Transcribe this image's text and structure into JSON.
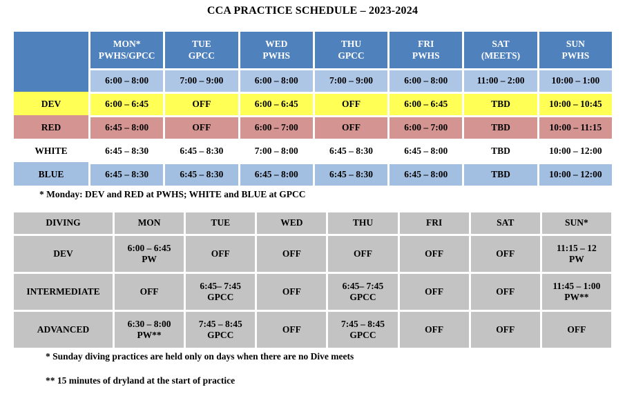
{
  "title": "CCA PRACTICE SCHEDULE – 2023-2024",
  "colors": {
    "header_blue": "#4F81BD",
    "time_row_blue": "#AEC6E6",
    "blue_row": "#A2BFE1",
    "dev_yellow": "#FFFF55",
    "red_row": "#D49492",
    "white_row": "#FFFFFF",
    "diving_gray": "#C3C3C3"
  },
  "swim_table": {
    "headers": [
      "",
      "MON*\nPWHS/GPCC",
      "TUE\nGPCC",
      "WED\nPWHS",
      "THU\nGPCC",
      "FRI\nPWHS",
      "SAT\n(MEETS)",
      "SUN\nPWHS"
    ],
    "rows": [
      {
        "label": "",
        "cells": [
          "6:00 – 8:00",
          "7:00 – 9:00",
          "6:00 – 8:00",
          "7:00 – 9:00",
          "6:00 – 8:00",
          "11:00 – 2:00",
          "10:00 – 1:00"
        ]
      },
      {
        "label": "DEV",
        "cells": [
          "6:00 – 6:45",
          "OFF",
          "6:00 – 6:45",
          "OFF",
          "6:00 – 6:45",
          "TBD",
          "10:00 – 10:45"
        ]
      },
      {
        "label": "RED",
        "cells": [
          "6:45 – 8:00",
          "OFF",
          "6:00 – 7:00",
          "OFF",
          "6:00 – 7:00",
          "TBD",
          "10:00 – 11:15"
        ]
      },
      {
        "label": "WHITE",
        "cells": [
          "6:45 – 8:30",
          "6:45 – 8:30",
          "7:00 – 8:00",
          "6:45 – 8:30",
          "6:45 – 8:00",
          "TBD",
          "10:00 – 12:00"
        ]
      },
      {
        "label": "BLUE",
        "cells": [
          "6:45 – 8:30",
          "6:45 – 8:30",
          "6:45 – 8:00",
          "6:45 – 8:30",
          "6:45 – 8:00",
          "TBD",
          "10:00 – 12:00"
        ]
      }
    ],
    "footnote": "* Monday: DEV and RED at PWHS; WHITE and BLUE at GPCC"
  },
  "diving_table": {
    "headers": [
      "DIVING",
      "MON",
      "TUE",
      "WED",
      "THU",
      "FRI",
      "SAT",
      "SUN*"
    ],
    "rows": [
      {
        "label": "DEV",
        "cells": [
          "6:00 – 6:45\nPW",
          "OFF",
          "OFF",
          "OFF",
          "OFF",
          "OFF",
          "11:15 – 12\nPW"
        ]
      },
      {
        "label": "INTERMEDIATE",
        "cells": [
          "OFF",
          "6:45– 7:45\nGPCC",
          "OFF",
          "6:45– 7:45\nGPCC",
          "OFF",
          "OFF",
          "11:45 – 1:00\nPW**"
        ]
      },
      {
        "label": "ADVANCED",
        "cells": [
          "6:30 – 8:00\nPW**",
          "7:45 – 8:45\nGPCC",
          "OFF",
          "7:45 – 8:45\nGPCC",
          "OFF",
          "OFF",
          "OFF"
        ]
      }
    ]
  },
  "footnotes": [
    "* Sunday diving practices are held only on days when there are no Dive meets",
    "** 15 minutes of dryland at the start of practice"
  ]
}
